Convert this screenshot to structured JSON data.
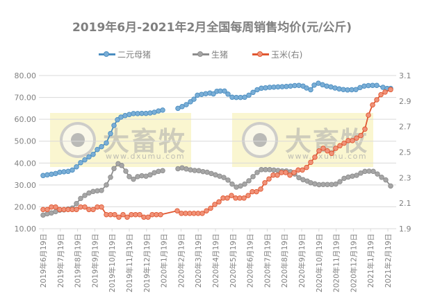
{
  "chart_data": {
    "type": "line",
    "title": "2019年6月-2021年2月全国每周销售均价(元/公斤)",
    "xlabel": "",
    "ylabel": "",
    "y_left": {
      "min": 10,
      "max": 80,
      "step": 10,
      "ticks": [
        "10.00",
        "20.00",
        "30.00",
        "40.00",
        "50.00",
        "60.00",
        "70.00",
        "80.00"
      ]
    },
    "y_right": {
      "min": 1.9,
      "max": 3.1,
      "step": 0.2,
      "ticks": [
        "1.9",
        "2.1",
        "2.3",
        "2.5",
        "2.7",
        "2.9",
        "3.1"
      ]
    },
    "grid": true,
    "legend_position": "top",
    "categories": [
      "2019年6月19日",
      "2019年7月19日",
      "2019年8月19日",
      "2019年9月19日",
      "2019年10月19日",
      "2019年11月19日",
      "2019年12月19日",
      "2020年1月19日",
      "2020年2月19日",
      "2020年3月19日",
      "2020年4月19日",
      "2020年5月19日",
      "2020年6月19日",
      "2020年7月19日",
      "2020年8月19日",
      "2020年9月19日",
      "2020年10月19日",
      "2020年11月19日",
      "2020年12月19日",
      "2021年1月19日",
      "2021年2月19日"
    ],
    "series": [
      {
        "name": "二元母猪",
        "axis": "left",
        "color": "#4a8dc0",
        "marker_fill": "#7aaed6",
        "points": [
          [
            62,
            34.3
          ],
          [
            68,
            34.6
          ],
          [
            74,
            34.9
          ],
          [
            80,
            35.2
          ],
          [
            86,
            35.8
          ],
          [
            92,
            36.0
          ],
          [
            98,
            36.2
          ],
          [
            104,
            36.8
          ],
          [
            110,
            38.3
          ],
          [
            116,
            40.2
          ],
          [
            122,
            41.5
          ],
          [
            128,
            42.8
          ],
          [
            134,
            44.0
          ],
          [
            140,
            46.2
          ],
          [
            146,
            47.5
          ],
          [
            153,
            49.2
          ],
          [
            159,
            53.5
          ],
          [
            164,
            57.2
          ],
          [
            169,
            59.8
          ],
          [
            174,
            61.0
          ],
          [
            180,
            61.7
          ],
          [
            186,
            62.2
          ],
          [
            192,
            62.6
          ],
          [
            198,
            62.6
          ],
          [
            204,
            62.7
          ],
          [
            210,
            62.7
          ],
          [
            216,
            62.9
          ],
          [
            222,
            63.2
          ],
          [
            228,
            63.8
          ],
          [
            234,
            64.2
          ],
          [
            256,
            65.0
          ],
          [
            262,
            65.8
          ],
          [
            268,
            66.7
          ],
          [
            274,
            68.0
          ],
          [
            279,
            69.2
          ],
          [
            284,
            71.0
          ],
          [
            290,
            71.4
          ],
          [
            296,
            71.7
          ],
          [
            302,
            72.0
          ],
          [
            307,
            71.6
          ],
          [
            312,
            72.8
          ],
          [
            317,
            72.9
          ],
          [
            323,
            72.9
          ],
          [
            328,
            71.5
          ],
          [
            334,
            70.1
          ],
          [
            340,
            70.0
          ],
          [
            346,
            70.0
          ],
          [
            352,
            70.1
          ],
          [
            358,
            71.0
          ],
          [
            364,
            72.3
          ],
          [
            370,
            73.5
          ],
          [
            376,
            74.2
          ],
          [
            382,
            74.4
          ],
          [
            388,
            74.6
          ],
          [
            394,
            74.7
          ],
          [
            400,
            74.8
          ],
          [
            406,
            74.9
          ],
          [
            412,
            75.0
          ],
          [
            418,
            75.2
          ],
          [
            424,
            75.4
          ],
          [
            430,
            75.5
          ],
          [
            436,
            75.2
          ],
          [
            441,
            74.3
          ],
          [
            447,
            73.5
          ],
          [
            452,
            75.6
          ],
          [
            458,
            76.5
          ],
          [
            464,
            75.8
          ],
          [
            470,
            75.2
          ],
          [
            476,
            74.8
          ],
          [
            482,
            74.3
          ],
          [
            488,
            73.9
          ],
          [
            494,
            73.6
          ],
          [
            500,
            73.4
          ],
          [
            506,
            73.5
          ],
          [
            512,
            73.6
          ],
          [
            518,
            74.5
          ],
          [
            524,
            75.2
          ],
          [
            530,
            75.4
          ],
          [
            536,
            75.5
          ],
          [
            542,
            75.5
          ],
          [
            551,
            74.6
          ],
          [
            557,
            74.1
          ],
          [
            562,
            74.1
          ]
        ]
      },
      {
        "name": "生猪",
        "axis": "left",
        "color": "#8c8c8c",
        "marker_fill": "#a6a6a6",
        "points": [
          [
            62,
            16.2
          ],
          [
            68,
            16.8
          ],
          [
            74,
            17.2
          ],
          [
            80,
            17.8
          ],
          [
            86,
            18.5
          ],
          [
            92,
            18.6
          ],
          [
            98,
            19.0
          ],
          [
            104,
            19.4
          ],
          [
            110,
            21.5
          ],
          [
            116,
            23.8
          ],
          [
            122,
            25.2
          ],
          [
            128,
            26.3
          ],
          [
            134,
            27.0
          ],
          [
            140,
            27.3
          ],
          [
            146,
            27.5
          ],
          [
            153,
            30.0
          ],
          [
            159,
            33.5
          ],
          [
            164,
            37.5
          ],
          [
            170,
            39.7
          ],
          [
            175,
            38.9
          ],
          [
            181,
            36.3
          ],
          [
            186,
            33.8
          ],
          [
            192,
            32.6
          ],
          [
            198,
            33.8
          ],
          [
            204,
            34.2
          ],
          [
            210,
            34.0
          ],
          [
            216,
            34.6
          ],
          [
            222,
            35.6
          ],
          [
            228,
            36.2
          ],
          [
            234,
            36.5
          ],
          [
            256,
            37.4
          ],
          [
            262,
            37.8
          ],
          [
            268,
            37.3
          ],
          [
            274,
            36.9
          ],
          [
            280,
            36.6
          ],
          [
            286,
            36.5
          ],
          [
            292,
            36.1
          ],
          [
            298,
            35.8
          ],
          [
            304,
            35.2
          ],
          [
            310,
            34.6
          ],
          [
            316,
            34.0
          ],
          [
            322,
            33.4
          ],
          [
            328,
            32.2
          ],
          [
            334,
            30.4
          ],
          [
            340,
            29.0
          ],
          [
            346,
            29.5
          ],
          [
            352,
            30.4
          ],
          [
            358,
            31.9
          ],
          [
            364,
            33.8
          ],
          [
            370,
            35.7
          ],
          [
            376,
            37.0
          ],
          [
            382,
            37.0
          ],
          [
            388,
            37.0
          ],
          [
            394,
            36.8
          ],
          [
            400,
            36.6
          ],
          [
            406,
            36.4
          ],
          [
            412,
            36.4
          ],
          [
            418,
            36.0
          ],
          [
            424,
            35.0
          ],
          [
            430,
            33.3
          ],
          [
            436,
            32.4
          ],
          [
            442,
            31.8
          ],
          [
            447,
            31.0
          ],
          [
            453,
            30.5
          ],
          [
            459,
            30.1
          ],
          [
            465,
            30.2
          ],
          [
            471,
            30.2
          ],
          [
            477,
            30.2
          ],
          [
            483,
            30.4
          ],
          [
            489,
            31.5
          ],
          [
            495,
            33.0
          ],
          [
            501,
            33.6
          ],
          [
            507,
            34.0
          ],
          [
            513,
            34.4
          ],
          [
            519,
            35.4
          ],
          [
            525,
            36.2
          ],
          [
            531,
            36.3
          ],
          [
            537,
            36.2
          ],
          [
            543,
            35.0
          ],
          [
            549,
            33.5
          ],
          [
            555,
            32.3
          ],
          [
            562,
            29.5
          ]
        ]
      },
      {
        "name": "玉米(右)",
        "axis": "right",
        "color": "#e0562f",
        "marker_fill": "#f0937a",
        "points": [
          [
            62,
            2.05
          ],
          [
            68,
            2.05
          ],
          [
            74,
            2.07
          ],
          [
            80,
            2.07
          ],
          [
            86,
            2.05
          ],
          [
            92,
            2.05
          ],
          [
            98,
            2.05
          ],
          [
            104,
            2.05
          ],
          [
            110,
            2.05
          ],
          [
            116,
            2.07
          ],
          [
            122,
            2.07
          ],
          [
            128,
            2.05
          ],
          [
            134,
            2.05
          ],
          [
            140,
            2.07
          ],
          [
            146,
            2.07
          ],
          [
            153,
            2.01
          ],
          [
            159,
            2.01
          ],
          [
            165,
            2.01
          ],
          [
            171,
            1.99
          ],
          [
            177,
            2.01
          ],
          [
            183,
            1.99
          ],
          [
            189,
            2.01
          ],
          [
            195,
            2.01
          ],
          [
            201,
            2.01
          ],
          [
            207,
            1.99
          ],
          [
            213,
            1.99
          ],
          [
            219,
            2.01
          ],
          [
            225,
            2.01
          ],
          [
            231,
            2.01
          ],
          [
            255,
            2.04
          ],
          [
            261,
            2.02
          ],
          [
            267,
            2.02
          ],
          [
            273,
            2.02
          ],
          [
            279,
            2.02
          ],
          [
            285,
            2.02
          ],
          [
            291,
            2.02
          ],
          [
            297,
            2.04
          ],
          [
            303,
            2.06
          ],
          [
            309,
            2.09
          ],
          [
            315,
            2.11
          ],
          [
            321,
            2.14
          ],
          [
            327,
            2.14
          ],
          [
            333,
            2.16
          ],
          [
            339,
            2.14
          ],
          [
            345,
            2.14
          ],
          [
            351,
            2.14
          ],
          [
            357,
            2.16
          ],
          [
            363,
            2.19
          ],
          [
            369,
            2.19
          ],
          [
            375,
            2.21
          ],
          [
            381,
            2.26
          ],
          [
            387,
            2.29
          ],
          [
            393,
            2.32
          ],
          [
            399,
            2.32
          ],
          [
            405,
            2.34
          ],
          [
            411,
            2.34
          ],
          [
            417,
            2.32
          ],
          [
            423,
            2.34
          ],
          [
            429,
            2.36
          ],
          [
            435,
            2.36
          ],
          [
            441,
            2.38
          ],
          [
            447,
            2.42
          ],
          [
            453,
            2.46
          ],
          [
            459,
            2.51
          ],
          [
            465,
            2.53
          ],
          [
            471,
            2.51
          ],
          [
            477,
            2.49
          ],
          [
            483,
            2.53
          ],
          [
            489,
            2.55
          ],
          [
            495,
            2.57
          ],
          [
            501,
            2.59
          ],
          [
            507,
            2.59
          ],
          [
            513,
            2.61
          ],
          [
            519,
            2.63
          ],
          [
            525,
            2.68
          ],
          [
            530,
            2.79
          ],
          [
            536,
            2.87
          ],
          [
            542,
            2.91
          ],
          [
            548,
            2.95
          ],
          [
            554,
            2.97
          ],
          [
            562,
            2.99
          ]
        ]
      }
    ]
  },
  "legend": {
    "items": [
      {
        "label": "二元母猪",
        "color": "#4a8dc0",
        "marker": "#7aaed6"
      },
      {
        "label": "生猪",
        "color": "#8c8c8c",
        "marker": "#a6a6a6"
      },
      {
        "label": "玉米(右)",
        "color": "#e0562f",
        "marker": "#f0937a"
      }
    ]
  },
  "watermark": {
    "brand": "大畜牧",
    "url": "www.dxumu.com"
  }
}
